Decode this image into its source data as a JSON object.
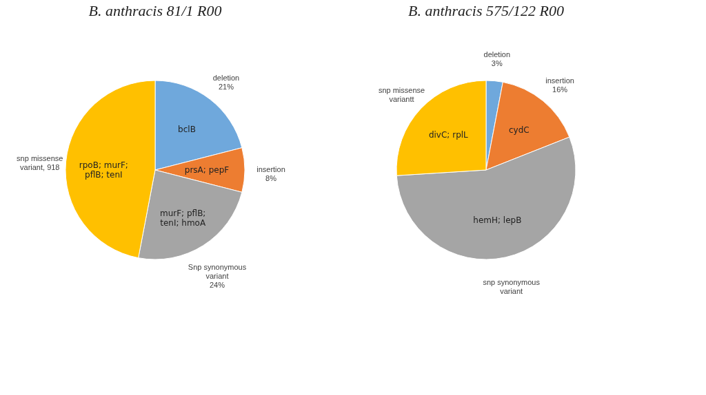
{
  "chart_data": [
    {
      "type": "pie",
      "title": "B. anthracis 81/1 R00",
      "categories": [
        "deletion",
        "insertion",
        "Snp synonymous variant",
        "snp missense variant, 918"
      ],
      "values": [
        21,
        8,
        24,
        47
      ],
      "value_labels": [
        "21%",
        "8%",
        "24%",
        null
      ],
      "colors": [
        "#6fa8dc",
        "#ed7d31",
        "#a5a5a5",
        "#ffc000"
      ],
      "annotations": [
        {
          "text": "bclB",
          "x": "deletion"
        },
        {
          "text": "prsA; pepF",
          "x": "insertion"
        },
        {
          "text": "murF; pflB; tenI; hmoA",
          "x": "Snp synonymous variant"
        },
        {
          "text": "rpoB; murF; pflB; tenI",
          "x": "snp missense variant, 918"
        }
      ]
    },
    {
      "type": "pie",
      "title": "B. anthracis 575/122 R00",
      "categories": [
        "deletion",
        "insertion",
        "snp synonymous variant",
        "snp missense variantt"
      ],
      "values": [
        3,
        16,
        55,
        26
      ],
      "value_labels": [
        "3%",
        "16%",
        null,
        null
      ],
      "colors": [
        "#6fa8dc",
        "#ed7d31",
        "#a5a5a5",
        "#ffc000"
      ],
      "annotations": [
        {
          "text": "cydC",
          "x": "insertion"
        },
        {
          "text": "hemH; lepB",
          "x": "snp synonymous variant"
        },
        {
          "text": "divC; rplL",
          "x": "snp missense variantt"
        }
      ]
    }
  ]
}
